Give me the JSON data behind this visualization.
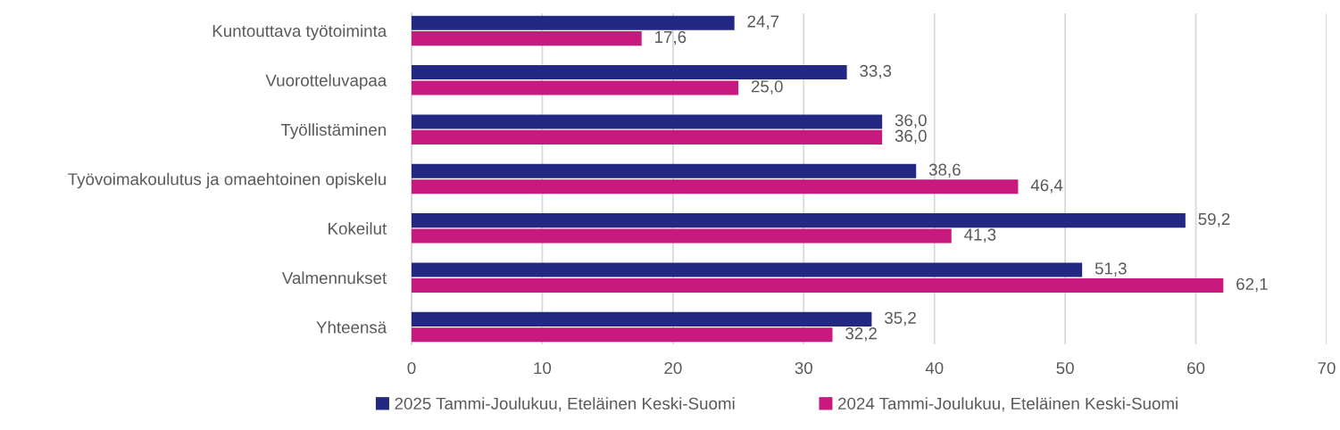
{
  "chart_data": {
    "type": "bar",
    "orientation": "horizontal",
    "categories": [
      "Kuntouttava työtoiminta",
      "Vuorotteluvapaa",
      "Työllistäminen",
      "Työvoimakoulutus ja omaehtoinen opiskelu",
      "Kokeilut",
      "Valmennukset",
      "Yhteensä"
    ],
    "series": [
      {
        "name": "2025 Tammi-Joulukuu, Eteläinen Keski-Suomi",
        "color": "#232882",
        "values": [
          24.7,
          33.3,
          36.0,
          38.6,
          59.2,
          51.3,
          35.2
        ],
        "value_labels": [
          "24,7",
          "33,3",
          "36,0",
          "38,6",
          "59,2",
          "51,3",
          "35,2"
        ]
      },
      {
        "name": "2024 Tammi-Joulukuu, Eteläinen Keski-Suomi",
        "color": "#c8197f",
        "values": [
          17.6,
          25.0,
          36.0,
          46.4,
          41.3,
          62.1,
          32.2
        ],
        "value_labels": [
          "17,6",
          "25,0",
          "36,0",
          "46,4",
          "41,3",
          "62,1",
          "32,2"
        ]
      }
    ],
    "xlim": [
      0,
      70
    ],
    "xticks": [
      0,
      10,
      20,
      30,
      40,
      50,
      60,
      70
    ],
    "grid": "x",
    "legend": "bottom"
  }
}
